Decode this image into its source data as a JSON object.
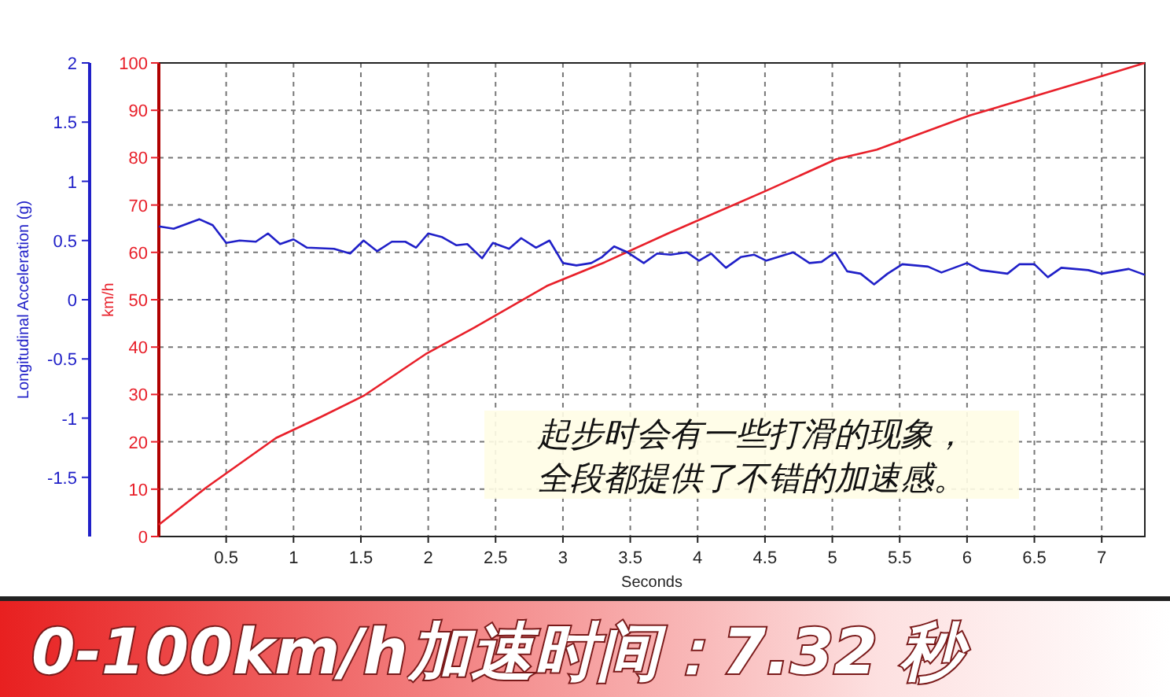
{
  "chart_data": {
    "type": "line",
    "title": "0-100km/h加速时间：7.32 秒",
    "xlabel": "Seconds",
    "ylabel": "km/h",
    "y2label": "Longitudinal Acceleration (g)",
    "annotations": [
      "起步时会有一些打滑的现象，",
      "全段都提供了不错的加速感。"
    ],
    "xlim": [
      0,
      7.32
    ],
    "xticks": [
      0.5,
      1,
      1.5,
      2,
      2.5,
      3,
      3.5,
      4,
      4.5,
      5,
      5.5,
      6,
      6.5,
      7
    ],
    "ylim": [
      0,
      100
    ],
    "yticks": [
      0,
      10,
      20,
      30,
      40,
      50,
      60,
      70,
      80,
      90,
      100
    ],
    "y2lim": [
      -2,
      2
    ],
    "y2ticks": [
      -1.5,
      -1,
      -0.5,
      0,
      0.5,
      1,
      1.5,
      2
    ],
    "grid": true,
    "marker": "none",
    "line_style": "solid",
    "series": [
      {
        "color": "#e8202a",
        "x": [
          0,
          0.35,
          0.87,
          1.2,
          1.52,
          1.98,
          2.34,
          2.88,
          3.31,
          3.78,
          4.5,
          5.03,
          5.33,
          6.02,
          7.0,
          7.32
        ],
        "values": [
          2.5,
          10.3,
          20.8,
          25.2,
          29.7,
          38.5,
          44.1,
          52.9,
          57.9,
          64.0,
          72.9,
          79.7,
          81.7,
          88.9,
          97.2,
          100
        ]
      },
      {
        "color": "#2020c8",
        "axis": "y2",
        "x": [
          0,
          0.11,
          0.3,
          0.4,
          0.5,
          0.6,
          0.72,
          0.81,
          0.9,
          1.0,
          1.1,
          1.3,
          1.42,
          1.52,
          1.62,
          1.73,
          1.83,
          1.91,
          2.0,
          2.1,
          2.21,
          2.29,
          2.4,
          2.48,
          2.6,
          2.69,
          2.8,
          2.9,
          3.0,
          3.1,
          3.21,
          3.29,
          3.38,
          3.48,
          3.6,
          3.7,
          3.8,
          3.92,
          4.01,
          4.1,
          4.21,
          4.32,
          4.42,
          4.51,
          4.71,
          4.83,
          4.92,
          5.02,
          5.11,
          5.21,
          5.31,
          5.41,
          5.52,
          5.71,
          5.81,
          6.0,
          6.1,
          6.3,
          6.39,
          6.5,
          6.6,
          6.7,
          6.9,
          7.0,
          7.2,
          7.32
        ],
        "values": [
          0.62,
          0.6,
          0.68,
          0.63,
          0.48,
          0.5,
          0.49,
          0.56,
          0.47,
          0.51,
          0.44,
          0.43,
          0.39,
          0.5,
          0.41,
          0.49,
          0.49,
          0.44,
          0.56,
          0.53,
          0.46,
          0.47,
          0.35,
          0.48,
          0.43,
          0.52,
          0.44,
          0.5,
          0.31,
          0.29,
          0.31,
          0.36,
          0.45,
          0.4,
          0.31,
          0.39,
          0.38,
          0.4,
          0.33,
          0.39,
          0.27,
          0.36,
          0.38,
          0.33,
          0.4,
          0.31,
          0.32,
          0.4,
          0.24,
          0.22,
          0.13,
          0.22,
          0.3,
          0.28,
          0.23,
          0.31,
          0.25,
          0.22,
          0.3,
          0.3,
          0.19,
          0.27,
          0.25,
          0.22,
          0.26,
          0.21
        ]
      }
    ]
  }
}
